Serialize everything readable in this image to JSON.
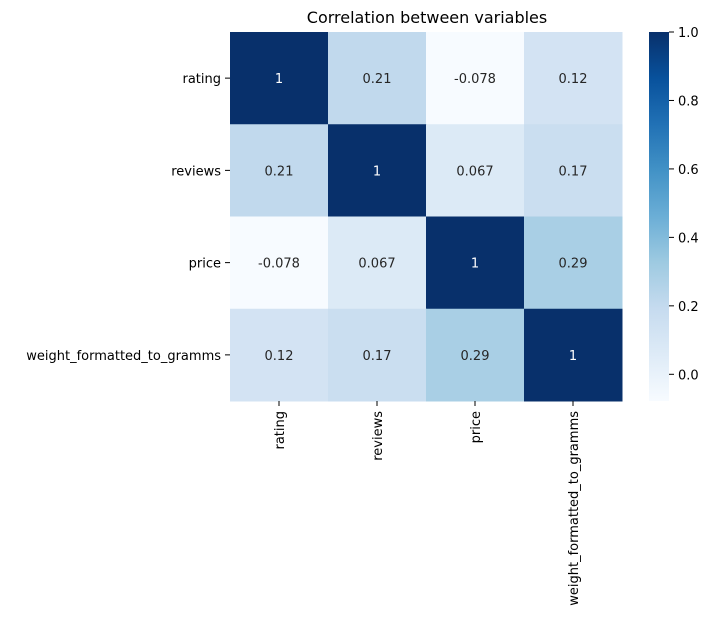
{
  "chart_data": {
    "type": "heatmap",
    "title": "Correlation between variables",
    "rows": [
      "rating",
      "reviews",
      "price",
      "weight_formatted_to_gramms"
    ],
    "columns": [
      "rating",
      "reviews",
      "price",
      "weight_formatted_to_gramms"
    ],
    "values": [
      [
        1,
        0.21,
        -0.078,
        0.12
      ],
      [
        0.21,
        1,
        0.067,
        0.17
      ],
      [
        -0.078,
        0.067,
        1,
        0.29
      ],
      [
        0.12,
        0.17,
        0.29,
        1
      ]
    ],
    "annotations": [
      [
        "1",
        "0.21",
        "-0.078",
        "0.12"
      ],
      [
        "0.21",
        "1",
        "0.067",
        "0.17"
      ],
      [
        "-0.078",
        "0.067",
        "1",
        "0.29"
      ],
      [
        "0.12",
        "0.17",
        "0.29",
        "1"
      ]
    ],
    "colormap": "Blues",
    "vmin": -0.078,
    "vmax": 1,
    "colorbar": {
      "ticks": [
        0.0,
        0.2,
        0.4,
        0.6,
        0.8,
        1.0
      ],
      "tick_labels": [
        "0.0",
        "0.2",
        "0.4",
        "0.6",
        "0.8",
        "1.0"
      ]
    }
  }
}
